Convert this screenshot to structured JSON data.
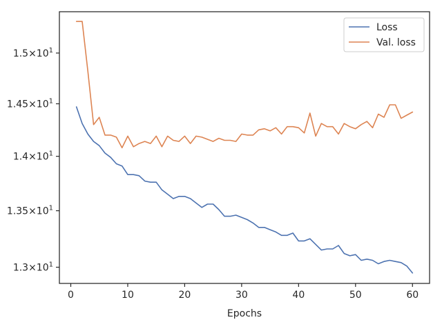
{
  "chart_data": {
    "type": "line",
    "title": "",
    "xlabel": "Epochs",
    "ylabel": "",
    "yscale": "log",
    "xlim": [
      -2,
      63
    ],
    "ylim": [
      12.86,
      15.42
    ],
    "grid": false,
    "legend_position": "top-right",
    "x_ticks": [
      0,
      10,
      20,
      30,
      40,
      50,
      60
    ],
    "x_tick_labels": [
      "0",
      "10",
      "20",
      "30",
      "40",
      "50",
      "60"
    ],
    "y_ticks": [
      13.0,
      13.5,
      14.0,
      14.5,
      15.0
    ],
    "y_tick_labels": [
      {
        "base": "1.3",
        "exp": "1"
      },
      {
        "base": "1.35",
        "exp": "1"
      },
      {
        "base": "1.4",
        "exp": "1"
      },
      {
        "base": "1.45",
        "exp": "1"
      },
      {
        "base": "1.5",
        "exp": "1"
      }
    ],
    "x": [
      1,
      2,
      3,
      4,
      5,
      6,
      7,
      8,
      9,
      10,
      11,
      12,
      13,
      14,
      15,
      16,
      17,
      18,
      19,
      20,
      21,
      22,
      23,
      24,
      25,
      26,
      27,
      28,
      29,
      30,
      31,
      32,
      33,
      34,
      35,
      36,
      37,
      38,
      39,
      40,
      41,
      42,
      43,
      44,
      45,
      46,
      47,
      48,
      49,
      50,
      51,
      52,
      53,
      54,
      55,
      56,
      57,
      58,
      59,
      60
    ],
    "series": [
      {
        "name": "Loss",
        "color": "#4c72b0",
        "values": [
          14.47,
          14.31,
          14.21,
          14.14,
          14.1,
          14.03,
          13.99,
          13.93,
          13.91,
          13.83,
          13.83,
          13.82,
          13.77,
          13.76,
          13.76,
          13.69,
          13.65,
          13.61,
          13.63,
          13.63,
          13.61,
          13.57,
          13.53,
          13.56,
          13.56,
          13.51,
          13.45,
          13.45,
          13.46,
          13.44,
          13.42,
          13.39,
          13.35,
          13.35,
          13.33,
          13.31,
          13.28,
          13.28,
          13.3,
          13.23,
          13.23,
          13.25,
          13.2,
          13.15,
          13.16,
          13.16,
          13.19,
          13.12,
          13.1,
          13.11,
          13.06,
          13.07,
          13.06,
          13.03,
          13.05,
          13.06,
          13.05,
          13.04,
          13.01,
          12.95
        ]
      },
      {
        "name": "Val. loss",
        "color": "#dd8452",
        "values": [
          15.32,
          15.32,
          14.82,
          14.3,
          14.37,
          14.2,
          14.2,
          14.18,
          14.08,
          14.19,
          14.09,
          14.12,
          14.14,
          14.12,
          14.19,
          14.09,
          14.19,
          14.15,
          14.14,
          14.19,
          14.12,
          14.19,
          14.18,
          14.16,
          14.14,
          14.17,
          14.15,
          14.15,
          14.14,
          14.21,
          14.2,
          14.2,
          14.25,
          14.26,
          14.24,
          14.27,
          14.21,
          14.28,
          14.28,
          14.27,
          14.22,
          14.41,
          14.19,
          14.31,
          14.28,
          14.28,
          14.21,
          14.31,
          14.28,
          14.26,
          14.3,
          14.33,
          14.27,
          14.4,
          14.37,
          14.49,
          14.49,
          14.36,
          14.39,
          14.42
        ]
      }
    ]
  }
}
